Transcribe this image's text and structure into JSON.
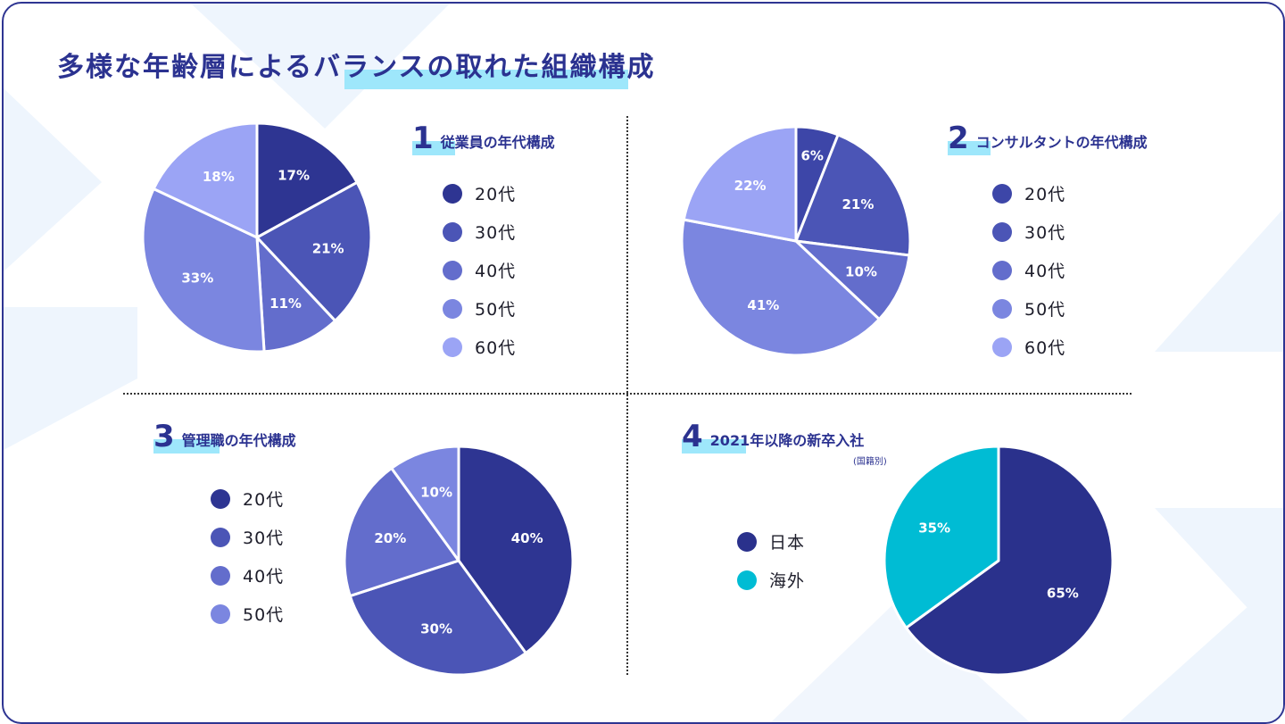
{
  "title": "多様な年齢層によるバランスの取れた組織構成",
  "sections": [
    {
      "num": "1",
      "label": "従業員の年代構成"
    },
    {
      "num": "2",
      "label": "コンサルタントの年代構成"
    },
    {
      "num": "3",
      "label": "管理職の年代構成"
    },
    {
      "num": "4",
      "label": "2021年以降の新卒入社",
      "sub": "(国籍別)"
    }
  ],
  "legends": [
    [
      {
        "label": "20代",
        "color": "#2e3592"
      },
      {
        "label": "30代",
        "color": "#4b55b6"
      },
      {
        "label": "40代",
        "color": "#636dcc"
      },
      {
        "label": "50代",
        "color": "#7b86e0"
      },
      {
        "label": "60代",
        "color": "#9ba4f5"
      }
    ],
    [
      {
        "label": "20代",
        "color": "#3d46a8"
      },
      {
        "label": "30代",
        "color": "#4b55b6"
      },
      {
        "label": "40代",
        "color": "#636dcc"
      },
      {
        "label": "50代",
        "color": "#7b86e0"
      },
      {
        "label": "60代",
        "color": "#9ba4f5"
      }
    ],
    [
      {
        "label": "20代",
        "color": "#2e3592"
      },
      {
        "label": "30代",
        "color": "#4b55b6"
      },
      {
        "label": "40代",
        "color": "#636dcc"
      },
      {
        "label": "50代",
        "color": "#7b86e0"
      }
    ],
    [
      {
        "label": "日本",
        "color": "#2a318c"
      },
      {
        "label": "海外",
        "color": "#00bcd4"
      }
    ]
  ],
  "chart_data": [
    {
      "type": "pie",
      "title": "従業員の年代構成",
      "categories": [
        "20代",
        "30代",
        "40代",
        "50代",
        "60代"
      ],
      "values": [
        17,
        21,
        11,
        33,
        18
      ],
      "colors": [
        "#2e3592",
        "#4b55b6",
        "#636dcc",
        "#7b86e0",
        "#9ba4f5"
      ]
    },
    {
      "type": "pie",
      "title": "コンサルタントの年代構成",
      "categories": [
        "20代",
        "30代",
        "40代",
        "50代",
        "60代"
      ],
      "values": [
        6,
        21,
        10,
        41,
        22
      ],
      "colors": [
        "#3d46a8",
        "#4b55b6",
        "#636dcc",
        "#7b86e0",
        "#9ba4f5"
      ]
    },
    {
      "type": "pie",
      "title": "管理職の年代構成",
      "categories": [
        "20代",
        "30代",
        "40代",
        "50代"
      ],
      "values": [
        40,
        30,
        20,
        10
      ],
      "colors": [
        "#2e3592",
        "#4b55b6",
        "#636dcc",
        "#7b86e0"
      ]
    },
    {
      "type": "pie",
      "title": "2021年以降の新卒入社(国籍別)",
      "categories": [
        "日本",
        "海外"
      ],
      "values": [
        65,
        35
      ],
      "colors": [
        "#2a318c",
        "#00bcd4"
      ]
    }
  ]
}
